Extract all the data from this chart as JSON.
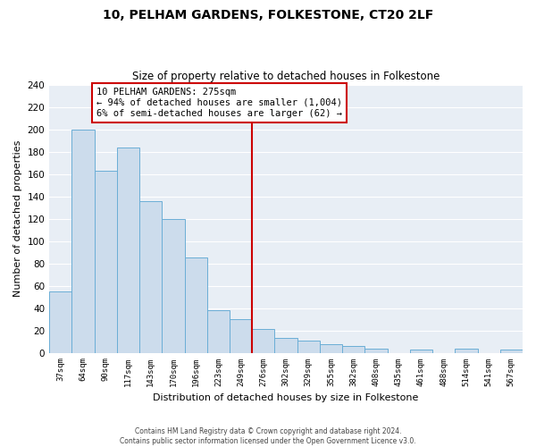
{
  "title": "10, PELHAM GARDENS, FOLKESTONE, CT20 2LF",
  "subtitle": "Size of property relative to detached houses in Folkestone",
  "xlabel": "Distribution of detached houses by size in Folkestone",
  "ylabel": "Number of detached properties",
  "bin_labels": [
    "37sqm",
    "64sqm",
    "90sqm",
    "117sqm",
    "143sqm",
    "170sqm",
    "196sqm",
    "223sqm",
    "249sqm",
    "276sqm",
    "302sqm",
    "329sqm",
    "355sqm",
    "382sqm",
    "408sqm",
    "435sqm",
    "461sqm",
    "488sqm",
    "514sqm",
    "541sqm",
    "567sqm"
  ],
  "bar_heights": [
    55,
    200,
    163,
    184,
    136,
    120,
    85,
    38,
    30,
    21,
    13,
    11,
    8,
    6,
    4,
    0,
    3,
    0,
    4,
    0,
    3
  ],
  "bar_color": "#ccdcec",
  "bar_edge_color": "#6baed6",
  "vline_index": 9,
  "vline_color": "#cc0000",
  "annotation_text": "10 PELHAM GARDENS: 275sqm\n← 94% of detached houses are smaller (1,004)\n6% of semi-detached houses are larger (62) →",
  "annotation_box_color": "#ffffff",
  "annotation_box_edge_color": "#cc0000",
  "ylim": [
    0,
    240
  ],
  "yticks": [
    0,
    20,
    40,
    60,
    80,
    100,
    120,
    140,
    160,
    180,
    200,
    220,
    240
  ],
  "bg_color": "#e8eef5",
  "footer_line1": "Contains HM Land Registry data © Crown copyright and database right 2024.",
  "footer_line2": "Contains public sector information licensed under the Open Government Licence v3.0."
}
